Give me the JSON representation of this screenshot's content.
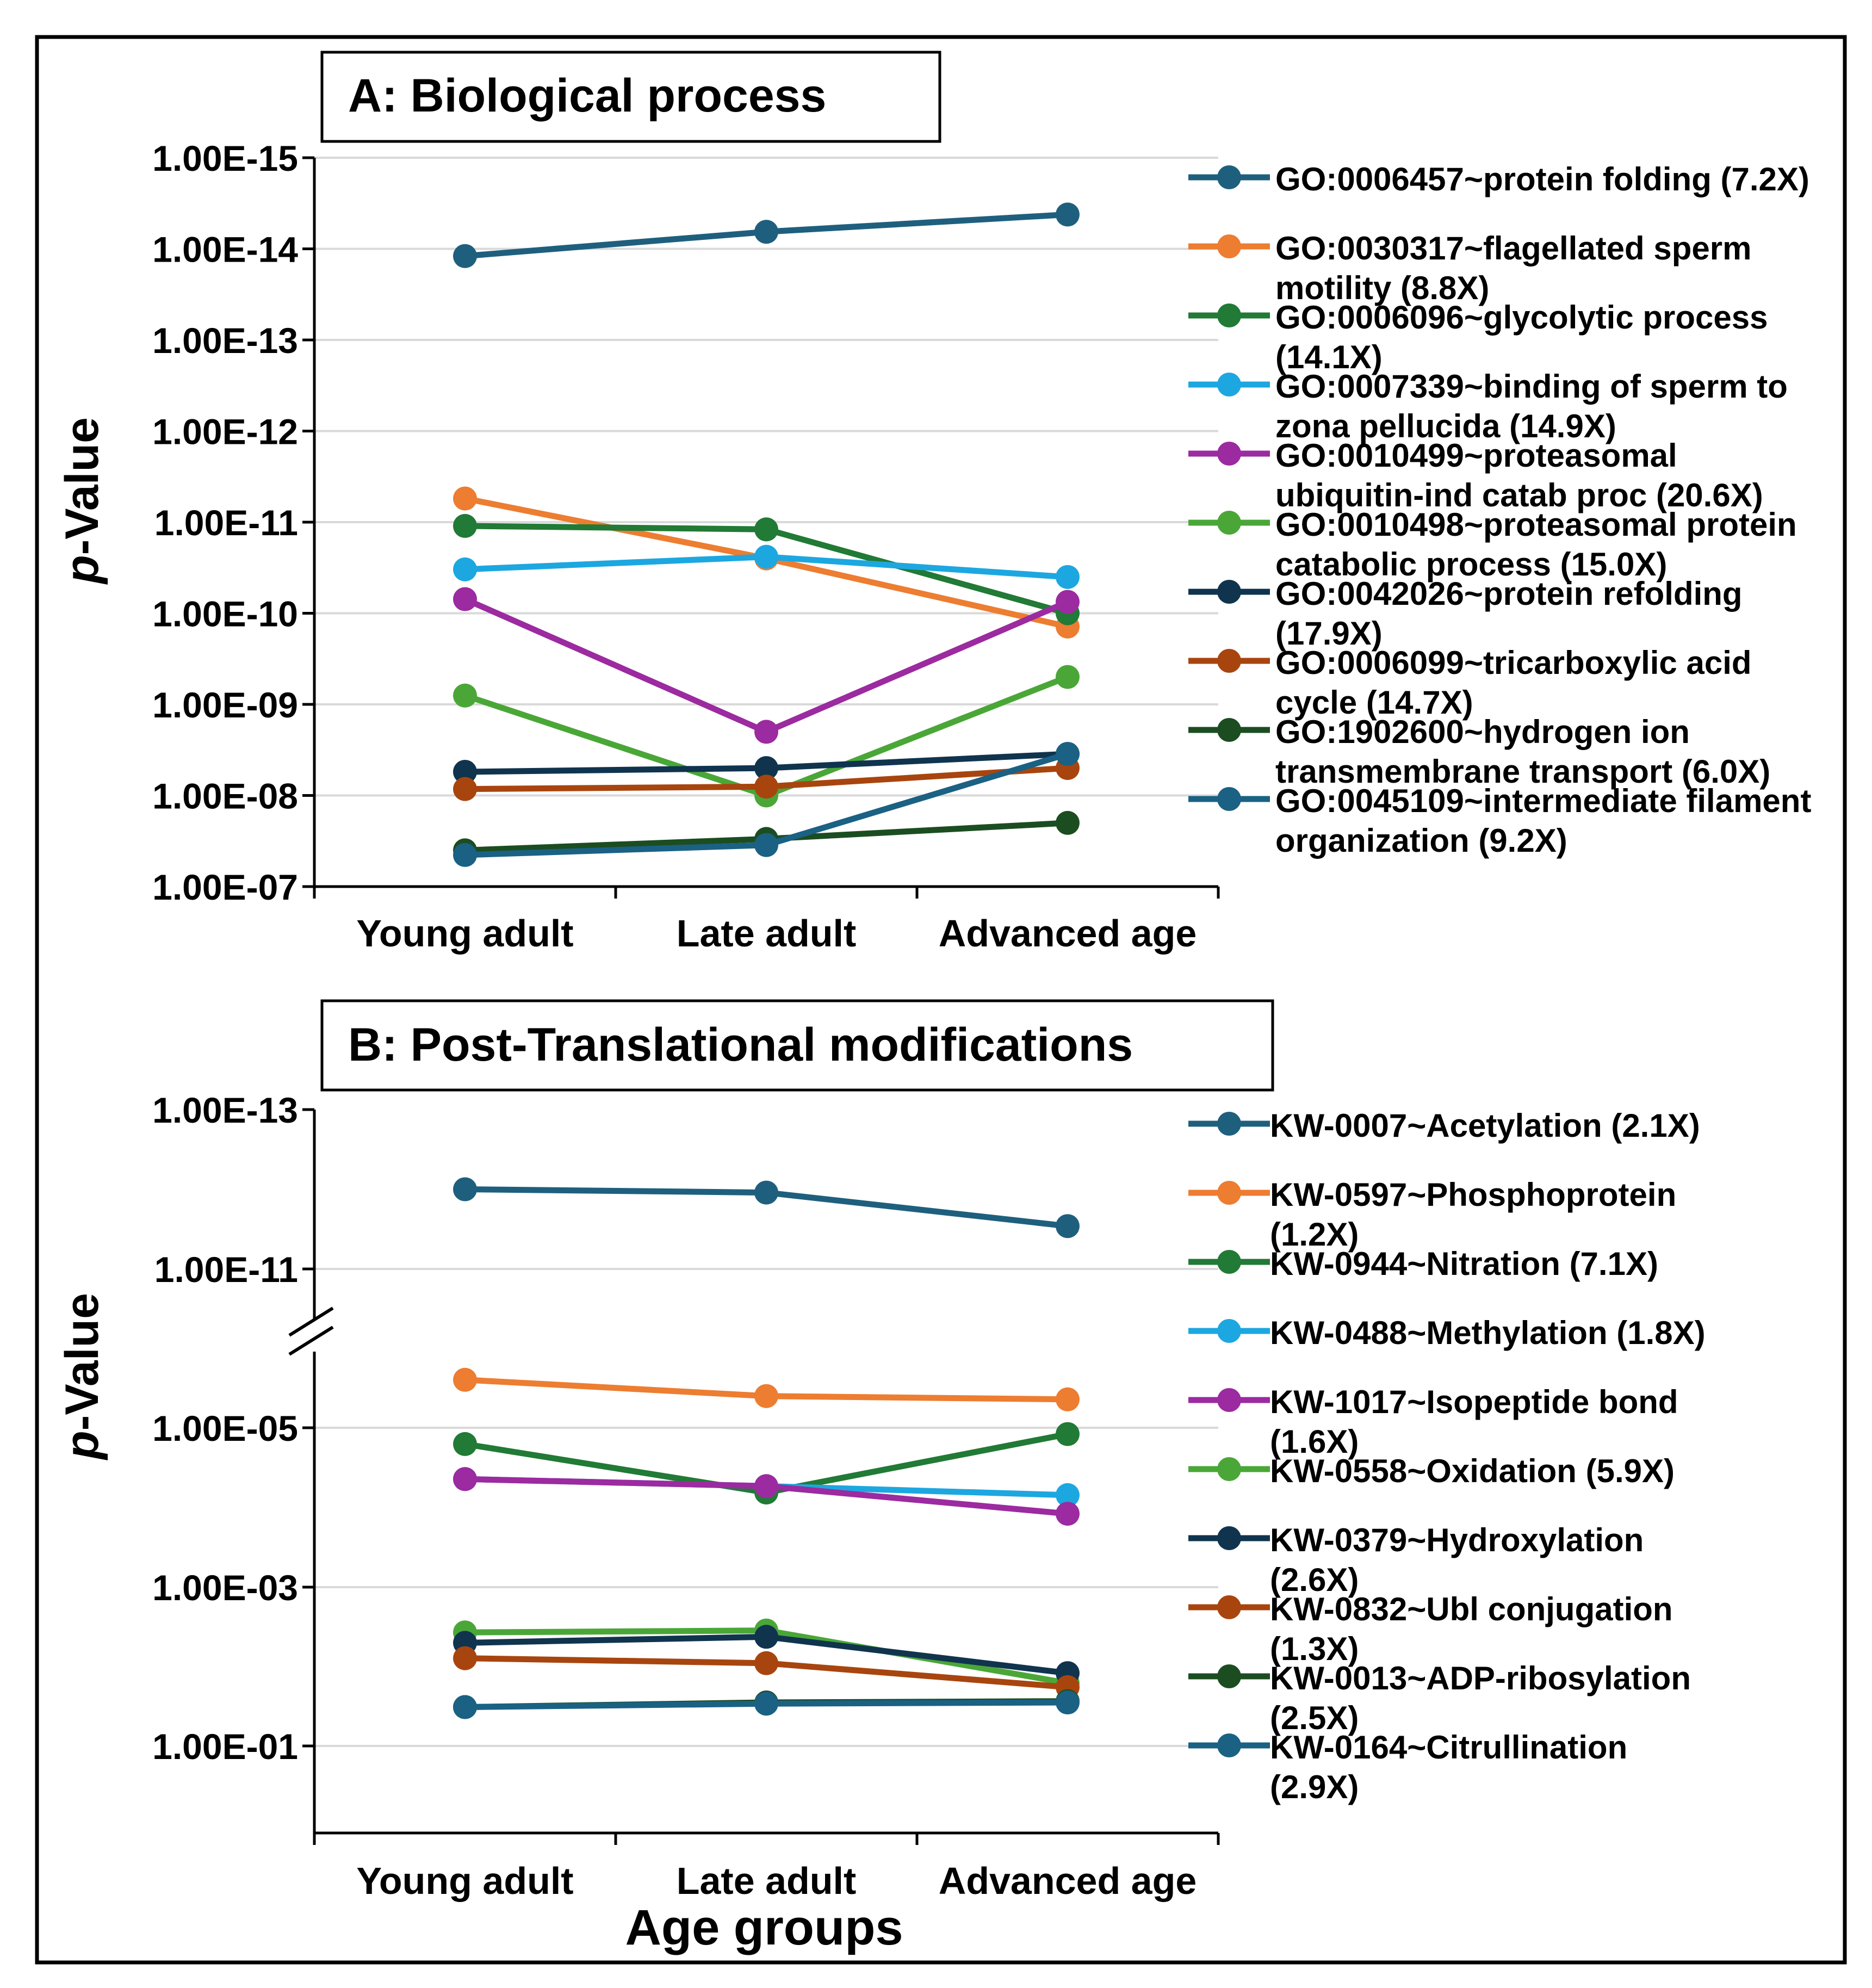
{
  "colors": {
    "outer_border": "#000000",
    "gridline": "#d9d9d9",
    "axis": "#000000",
    "break_mark": "#000000"
  },
  "chart_data": [
    {
      "id": "A",
      "type": "line",
      "title": "A: Biological process",
      "xlabel": "",
      "ylabel": "p-Value",
      "ylabel_prefix": "p",
      "ylabel_suffix": "-Value",
      "y_scale": "log10-inverted",
      "ylim": [
        1e-07,
        1e-15
      ],
      "y_tick_labels": [
        "1.00E-15",
        "1.00E-14",
        "1.00E-13",
        "1.00E-12",
        "1.00E-11",
        "1.00E-10",
        "1.00E-09",
        "1.00E-08",
        "1.00E-07"
      ],
      "categories": [
        "Young adult",
        "Late adult",
        "Advanced age"
      ],
      "legend_position": "right",
      "grid": true,
      "series": [
        {
          "name": "GO:0006457~protein folding (7.2X)",
          "legend_lines": [
            "GO:0006457~protein folding (7.2X)"
          ],
          "color": "#1f5f7e",
          "values": [
            1.2e-14,
            6.5e-15,
            4.2e-15
          ]
        },
        {
          "name": "GO:0030317~flagellated sperm motility (8.8X)",
          "legend_lines": [
            "GO:0030317~flagellated sperm",
            "motility (8.8X)"
          ],
          "color": "#ed7d31",
          "values": [
            5.5e-12,
            2.5e-11,
            1.4e-10
          ]
        },
        {
          "name": "GO:0006096~glycolytic process (14.1X)",
          "legend_lines": [
            "GO:0006096~glycolytic process",
            "(14.1X)"
          ],
          "color": "#217a35",
          "values": [
            1.1e-11,
            1.2e-11,
            1e-10
          ]
        },
        {
          "name": "GO:0007339~binding of sperm to zona pellucida (14.9X)",
          "legend_lines": [
            "GO:0007339~binding of sperm to",
            "zona pellucida (14.9X)"
          ],
          "color": "#1da7e0",
          "values": [
            3.3e-11,
            2.4e-11,
            4e-11
          ]
        },
        {
          "name": "GO:0010499~proteasomal ubiquitin-ind catab proc (20.6X)",
          "legend_lines": [
            "GO:0010499~proteasomal",
            "ubiquitin-ind catab proc (20.6X)"
          ],
          "color": "#9c2aa0",
          "values": [
            7e-11,
            2e-09,
            7.5e-11
          ]
        },
        {
          "name": "GO:0010498~proteasomal protein catabolic process (15.0X)",
          "legend_lines": [
            "GO:0010498~proteasomal protein",
            "catabolic process (15.0X)"
          ],
          "color": "#4aa737",
          "values": [
            8e-10,
            1e-08,
            5e-10
          ]
        },
        {
          "name": "GO:0042026~protein refolding (17.9X)",
          "legend_lines": [
            "GO:0042026~protein refolding",
            "(17.9X)"
          ],
          "color": "#10344e",
          "values": [
            5.5e-09,
            5e-09,
            3.5e-09
          ]
        },
        {
          "name": "GO:0006099~tricarboxylic acid cycle (14.7X)",
          "legend_lines": [
            "GO:0006099~tricarboxylic acid",
            "cycle (14.7X)"
          ],
          "color": "#a8450f",
          "values": [
            8.5e-09,
            8e-09,
            5e-09
          ]
        },
        {
          "name": "GO:1902600~hydrogen ion transmembrane transport (6.0X)",
          "legend_lines": [
            "GO:1902600~hydrogen ion",
            "transmembrane transport (6.0X)"
          ],
          "color": "#1b4d21",
          "values": [
            4e-08,
            3e-08,
            2e-08
          ]
        },
        {
          "name": "GO:0045109~intermediate filament organization (9.2X)",
          "legend_lines": [
            "GO:0045109~intermediate filament",
            "organization (9.2X)"
          ],
          "color": "#1a6184",
          "values": [
            4.5e-08,
            3.5e-08,
            3.5e-09
          ]
        }
      ]
    },
    {
      "id": "B",
      "type": "line",
      "title": "B: Post-Translational modifications",
      "xlabel": "Age groups",
      "ylabel": "p-Value",
      "ylabel_prefix": "p",
      "ylabel_suffix": "-Value",
      "y_scale": "log10-inverted-broken",
      "y_break_between": [
        1e-11,
        1e-06
      ],
      "y_tick_labels": [
        "1.00E-13",
        "1.00E-11",
        "1.00E-05",
        "1.00E-03",
        "1.00E-01"
      ],
      "categories": [
        "Young adult",
        "Late adult",
        "Advanced age"
      ],
      "legend_position": "right",
      "grid": true,
      "series": [
        {
          "name": "KW-0007~Acetylation (2.1X)",
          "legend_lines": [
            "KW-0007~Acetylation (2.1X)"
          ],
          "color": "#1f5f7e",
          "values": [
            1e-12,
            1.1e-12,
            2.9e-12
          ]
        },
        {
          "name": "KW-0597~Phosphoprotein (1.2X)",
          "legend_lines": [
            "KW-0597~Phosphoprotein",
            "(1.2X)"
          ],
          "color": "#ed7d31",
          "values": [
            2.5e-06,
            4e-06,
            4.4e-06
          ]
        },
        {
          "name": "KW-0944~Nitration (7.1X)",
          "legend_lines": [
            "KW-0944~Nitration (7.1X)"
          ],
          "color": "#217a35",
          "values": [
            1.6e-05,
            6.5e-05,
            1.2e-05
          ]
        },
        {
          "name": "KW-0488~Methylation (1.8X)",
          "legend_lines": [
            "KW-0488~Methylation (1.8X)"
          ],
          "color": "#1da7e0",
          "values": [
            4.4e-05,
            5.4e-05,
            7e-05
          ]
        },
        {
          "name": "KW-1017~Isopeptide bond (1.6X)",
          "legend_lines": [
            "KW-1017~Isopeptide bond",
            "(1.6X)"
          ],
          "color": "#9c2aa0",
          "values": [
            4.4e-05,
            5.4e-05,
            0.00012
          ]
        },
        {
          "name": "KW-0558~Oxidation (5.9X)",
          "legend_lines": [
            "KW-0558~Oxidation (5.9X)"
          ],
          "color": "#4aa737",
          "values": [
            0.0037,
            0.0035,
            0.016
          ]
        },
        {
          "name": "KW-0379~Hydroxylation (2.6X)",
          "legend_lines": [
            "KW-0379~Hydroxylation",
            "(2.6X)"
          ],
          "color": "#10344e",
          "values": [
            0.005,
            0.0042,
            0.012
          ]
        },
        {
          "name": "KW-0832~Ubl conjugation (1.3X)",
          "legend_lines": [
            "KW-0832~Ubl conjugation",
            "(1.3X)"
          ],
          "color": "#a8450f",
          "values": [
            0.0078,
            0.009,
            0.018
          ]
        },
        {
          "name": "KW-0013~ADP-ribosylation (2.5X)",
          "legend_lines": [
            "KW-0013~ADP-ribosylation",
            "(2.5X)"
          ],
          "color": "#1b4d21",
          "values": [
            0.032,
            0.028,
            0.027
          ]
        },
        {
          "name": "KW-0164~Citrullination (2.9X)",
          "legend_lines": [
            "KW-0164~Citrullination",
            "(2.9X)"
          ],
          "color": "#1a6184",
          "values": [
            0.032,
            0.029,
            0.028
          ]
        }
      ]
    }
  ]
}
